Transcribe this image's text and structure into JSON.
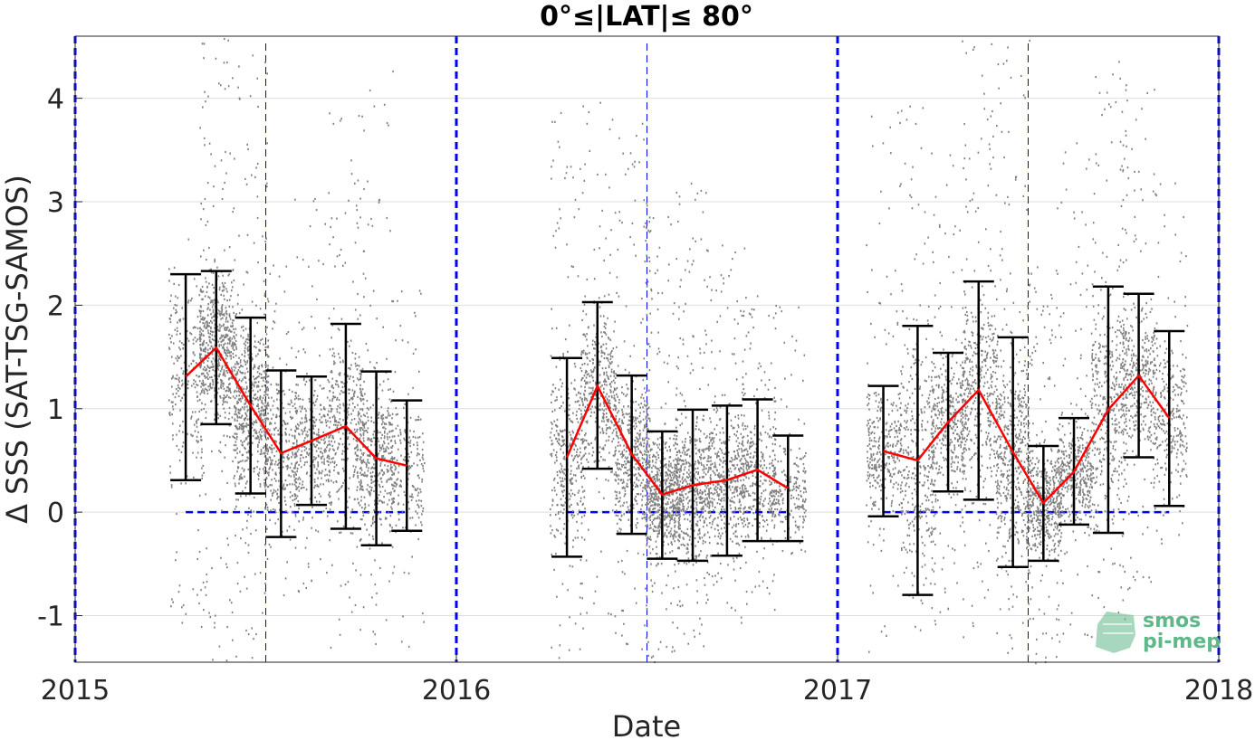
{
  "chart_data": {
    "type": "scatter",
    "title": "0°≤|LAT|≤ 80°",
    "xlabel": "Date",
    "ylabel": "Δ SSS (SAT-TSG-SAMOS)",
    "xlim": [
      2015,
      2018
    ],
    "ylim": [
      -1.45,
      4.6
    ],
    "x_ticks": [
      2015,
      2016,
      2017,
      2018
    ],
    "x_tick_labels": [
      "2015",
      "2016",
      "2017",
      "2018"
    ],
    "y_ticks": [
      -1,
      0,
      1,
      2,
      3,
      4
    ],
    "y_tick_labels": [
      "-1",
      "0",
      "1",
      "2",
      "3",
      "4"
    ],
    "grid": true,
    "colors": {
      "points": "#808080",
      "mean_line": "#ff0000",
      "error_bars": "#000000",
      "reference_lines": "#0000ff"
    },
    "year_boundaries": [
      2015,
      2016,
      2017,
      2018
    ],
    "mid_year_lines": [
      2015.5,
      2016.5,
      2017.5
    ],
    "zero_line_segments": [
      [
        2015.29,
        2015.87
      ],
      [
        2016.29,
        2016.87
      ],
      [
        2017.12,
        2017.87
      ]
    ],
    "series": [
      {
        "type": "line",
        "x": [
          2015.29,
          2015.37,
          2015.46,
          2015.54,
          2015.62,
          2015.71,
          2015.79,
          2015.87,
          2016.29,
          2016.37,
          2016.46,
          2016.54,
          2016.62,
          2016.71,
          2016.79,
          2016.87,
          2017.12,
          2017.21,
          2017.29,
          2017.37,
          2017.46,
          2017.54,
          2017.62,
          2017.71,
          2017.79,
          2017.87
        ],
        "mean": [
          1.31,
          1.59,
          1.03,
          0.57,
          0.69,
          0.83,
          0.52,
          0.45,
          0.53,
          1.22,
          0.56,
          0.17,
          0.26,
          0.31,
          0.41,
          0.23,
          0.59,
          0.5,
          0.87,
          1.18,
          0.58,
          0.09,
          0.39,
          0.99,
          1.32,
          0.91
        ],
        "upper": [
          2.3,
          2.33,
          1.88,
          1.37,
          1.31,
          1.82,
          1.36,
          1.08,
          1.49,
          2.03,
          1.32,
          0.78,
          0.99,
          1.03,
          1.09,
          0.74,
          1.22,
          1.8,
          1.54,
          2.23,
          1.69,
          0.64,
          0.91,
          2.18,
          2.11,
          1.75
        ],
        "lower": [
          0.31,
          0.85,
          0.18,
          -0.24,
          0.07,
          -0.16,
          -0.32,
          -0.18,
          -0.43,
          0.42,
          -0.21,
          -0.45,
          -0.47,
          -0.42,
          -0.28,
          -0.28,
          -0.04,
          -0.8,
          0.2,
          0.12,
          -0.53,
          -0.47,
          -0.12,
          -0.2,
          0.53,
          0.06
        ]
      }
    ],
    "scatter_clusters": [
      {
        "x": 2015.29,
        "lo": -1.2,
        "hi": 3.0,
        "n": 260
      },
      {
        "x": 2015.37,
        "lo": -1.45,
        "hi": 4.6,
        "n": 650
      },
      {
        "x": 2015.46,
        "lo": -1.45,
        "hi": 4.5,
        "n": 650
      },
      {
        "x": 2015.54,
        "lo": -0.9,
        "hi": 2.5,
        "n": 340
      },
      {
        "x": 2015.62,
        "lo": -0.8,
        "hi": 3.3,
        "n": 340
      },
      {
        "x": 2015.71,
        "lo": -1.3,
        "hi": 3.9,
        "n": 420
      },
      {
        "x": 2015.79,
        "lo": -1.4,
        "hi": 4.3,
        "n": 420
      },
      {
        "x": 2015.87,
        "lo": -1.3,
        "hi": 2.2,
        "n": 220
      },
      {
        "x": 2016.29,
        "lo": -1.4,
        "hi": 3.9,
        "n": 380
      },
      {
        "x": 2016.37,
        "lo": -1.0,
        "hi": 4.2,
        "n": 420
      },
      {
        "x": 2016.46,
        "lo": -1.45,
        "hi": 3.8,
        "n": 520
      },
      {
        "x": 2016.54,
        "lo": -1.45,
        "hi": 3.0,
        "n": 680
      },
      {
        "x": 2016.62,
        "lo": -1.3,
        "hi": 3.2,
        "n": 560
      },
      {
        "x": 2016.71,
        "lo": -1.1,
        "hi": 2.6,
        "n": 440
      },
      {
        "x": 2016.79,
        "lo": -1.0,
        "hi": 2.1,
        "n": 340
      },
      {
        "x": 2016.87,
        "lo": -0.5,
        "hi": 2.1,
        "n": 220
      },
      {
        "x": 2017.12,
        "lo": -1.4,
        "hi": 4.0,
        "n": 340
      },
      {
        "x": 2017.21,
        "lo": -1.3,
        "hi": 4.1,
        "n": 360
      },
      {
        "x": 2017.29,
        "lo": -1.1,
        "hi": 3.8,
        "n": 380
      },
      {
        "x": 2017.37,
        "lo": -1.2,
        "hi": 4.6,
        "n": 460
      },
      {
        "x": 2017.46,
        "lo": -1.45,
        "hi": 4.6,
        "n": 520
      },
      {
        "x": 2017.54,
        "lo": -1.45,
        "hi": 2.4,
        "n": 520
      },
      {
        "x": 2017.62,
        "lo": -1.2,
        "hi": 3.8,
        "n": 420
      },
      {
        "x": 2017.71,
        "lo": -1.1,
        "hi": 4.4,
        "n": 440
      },
      {
        "x": 2017.79,
        "lo": -0.8,
        "hi": 4.3,
        "n": 380
      },
      {
        "x": 2017.87,
        "lo": -0.3,
        "hi": 3.3,
        "n": 280
      }
    ]
  },
  "logo": {
    "line1": "smos",
    "line2": "pi-mep"
  }
}
